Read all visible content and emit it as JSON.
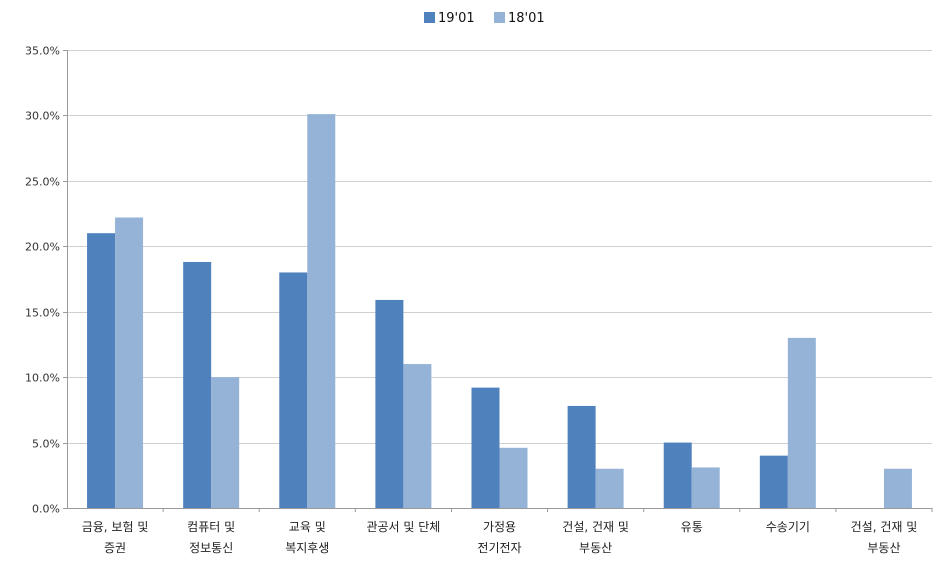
{
  "chart_data": {
    "type": "bar",
    "categories": [
      [
        "금융, 보험 및",
        "증권"
      ],
      [
        "컴퓨터 및",
        "정보통신"
      ],
      [
        "교육 및",
        "복지후생"
      ],
      [
        "관공서 및 단체"
      ],
      [
        "가정용",
        "전기전자"
      ],
      [
        "건설, 건재 및",
        "부동산"
      ],
      [
        "유통"
      ],
      [
        "수송기기"
      ],
      [
        "건설, 건재 및",
        "부동산"
      ]
    ],
    "series": [
      {
        "name": "19'01",
        "color": "#4f81bd",
        "values": [
          21.0,
          18.8,
          18.0,
          15.9,
          9.2,
          7.8,
          5.0,
          4.0,
          null
        ]
      },
      {
        "name": "18'01",
        "color": "#95b3d7",
        "values": [
          22.2,
          10.0,
          30.1,
          11.0,
          4.6,
          3.0,
          3.1,
          13.0,
          3.0
        ]
      }
    ],
    "ylim": [
      0,
      35
    ],
    "yticks": [
      "0.0%",
      "5.0%",
      "10.0%",
      "15.0%",
      "20.0%",
      "25.0%",
      "30.0%",
      "35.0%"
    ],
    "ytick_values": [
      0,
      5,
      10,
      15,
      20,
      25,
      30,
      35
    ],
    "grid": true,
    "legend_position": "top-center"
  }
}
